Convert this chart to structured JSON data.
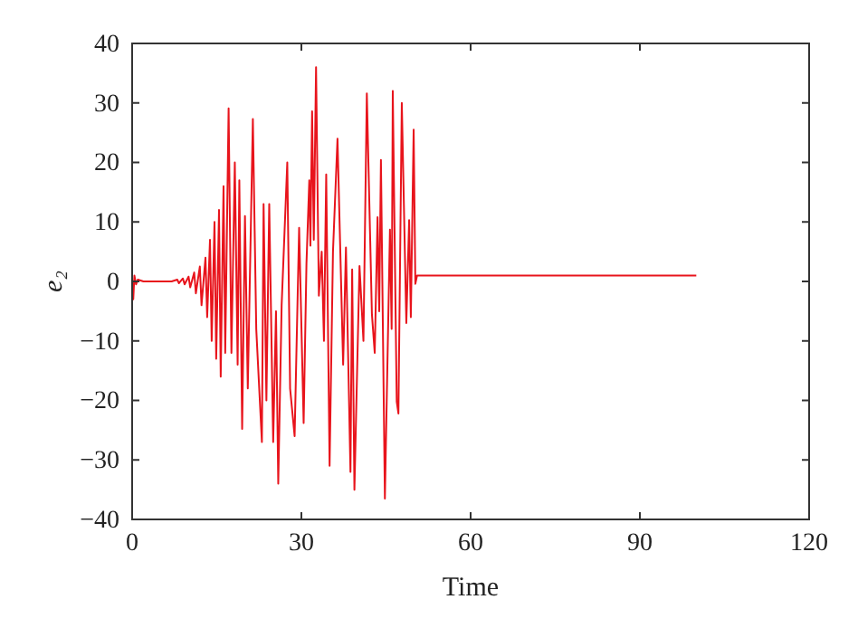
{
  "chart_data": {
    "type": "line",
    "xlabel": "Time",
    "ylabel": "e₂",
    "xlim": [
      0,
      120
    ],
    "xticks": [
      0,
      30,
      60,
      90,
      120
    ],
    "ylim": [
      -40,
      40
    ],
    "yticks": [
      -40,
      -30,
      -20,
      -10,
      0,
      10,
      20,
      30,
      40
    ],
    "grid": false,
    "marker": "none",
    "line_style": "solid",
    "series": [
      {
        "color": "#e8141c",
        "x": [
          0,
          0.2,
          0.4,
          0.7,
          1,
          2,
          3,
          4,
          5,
          6,
          7,
          8,
          8.3,
          9,
          9.3,
          10,
          10.3,
          11,
          11.3,
          12,
          12.3,
          13,
          13.3,
          13.8,
          14.1,
          14.6,
          14.9,
          15.4,
          15.7,
          16.2,
          16.5,
          17.1,
          17.6,
          18.2,
          18.7,
          19,
          19.5,
          20,
          20.5,
          21.4,
          22,
          23,
          23.3,
          23.8,
          24.3,
          25,
          25.5,
          25.9,
          26.5,
          27.5,
          28,
          28.8,
          29.6,
          30.4,
          30.9,
          31.4,
          31.6,
          31.9,
          32.2,
          32.6,
          33.1,
          33.6,
          34,
          34.4,
          35,
          35.6,
          36.4,
          37.4,
          37.9,
          38.7,
          39,
          39.4,
          40.3,
          41,
          41.6,
          42.5,
          43,
          43.5,
          43.8,
          44.1,
          44.8,
          45.7,
          46,
          46.2,
          46.9,
          47.2,
          47.8,
          48.6,
          49.1,
          49.4,
          49.9,
          50.2,
          50.5,
          100
        ],
        "values": [
          0,
          -3,
          1,
          -0.5,
          0.3,
          0,
          0,
          0,
          0,
          0,
          0,
          0.3,
          -0.3,
          0.5,
          -0.5,
          0.8,
          -1,
          1.5,
          -2,
          2.5,
          -4,
          4,
          -6,
          7,
          -10,
          10,
          -13,
          12,
          -16,
          16,
          -12,
          29.1,
          -12,
          20,
          -14,
          17,
          -24.8,
          11,
          -18,
          27.3,
          -8,
          -27,
          13,
          -20,
          13,
          -27,
          -5,
          -34,
          -4,
          20,
          -18,
          -26,
          9,
          -23.8,
          3,
          17,
          6,
          28.6,
          7,
          36,
          -2.4,
          5,
          -10,
          18,
          -31,
          5,
          24,
          -14,
          5.7,
          -32,
          2,
          -35,
          2.6,
          -10,
          31.6,
          -5.5,
          -12,
          10.8,
          -5,
          20.4,
          -36.5,
          8.7,
          -8,
          32,
          -20.2,
          -22.2,
          30,
          -7,
          10.3,
          -6,
          25.5,
          -0.4,
          1,
          1
        ]
      }
    ]
  }
}
